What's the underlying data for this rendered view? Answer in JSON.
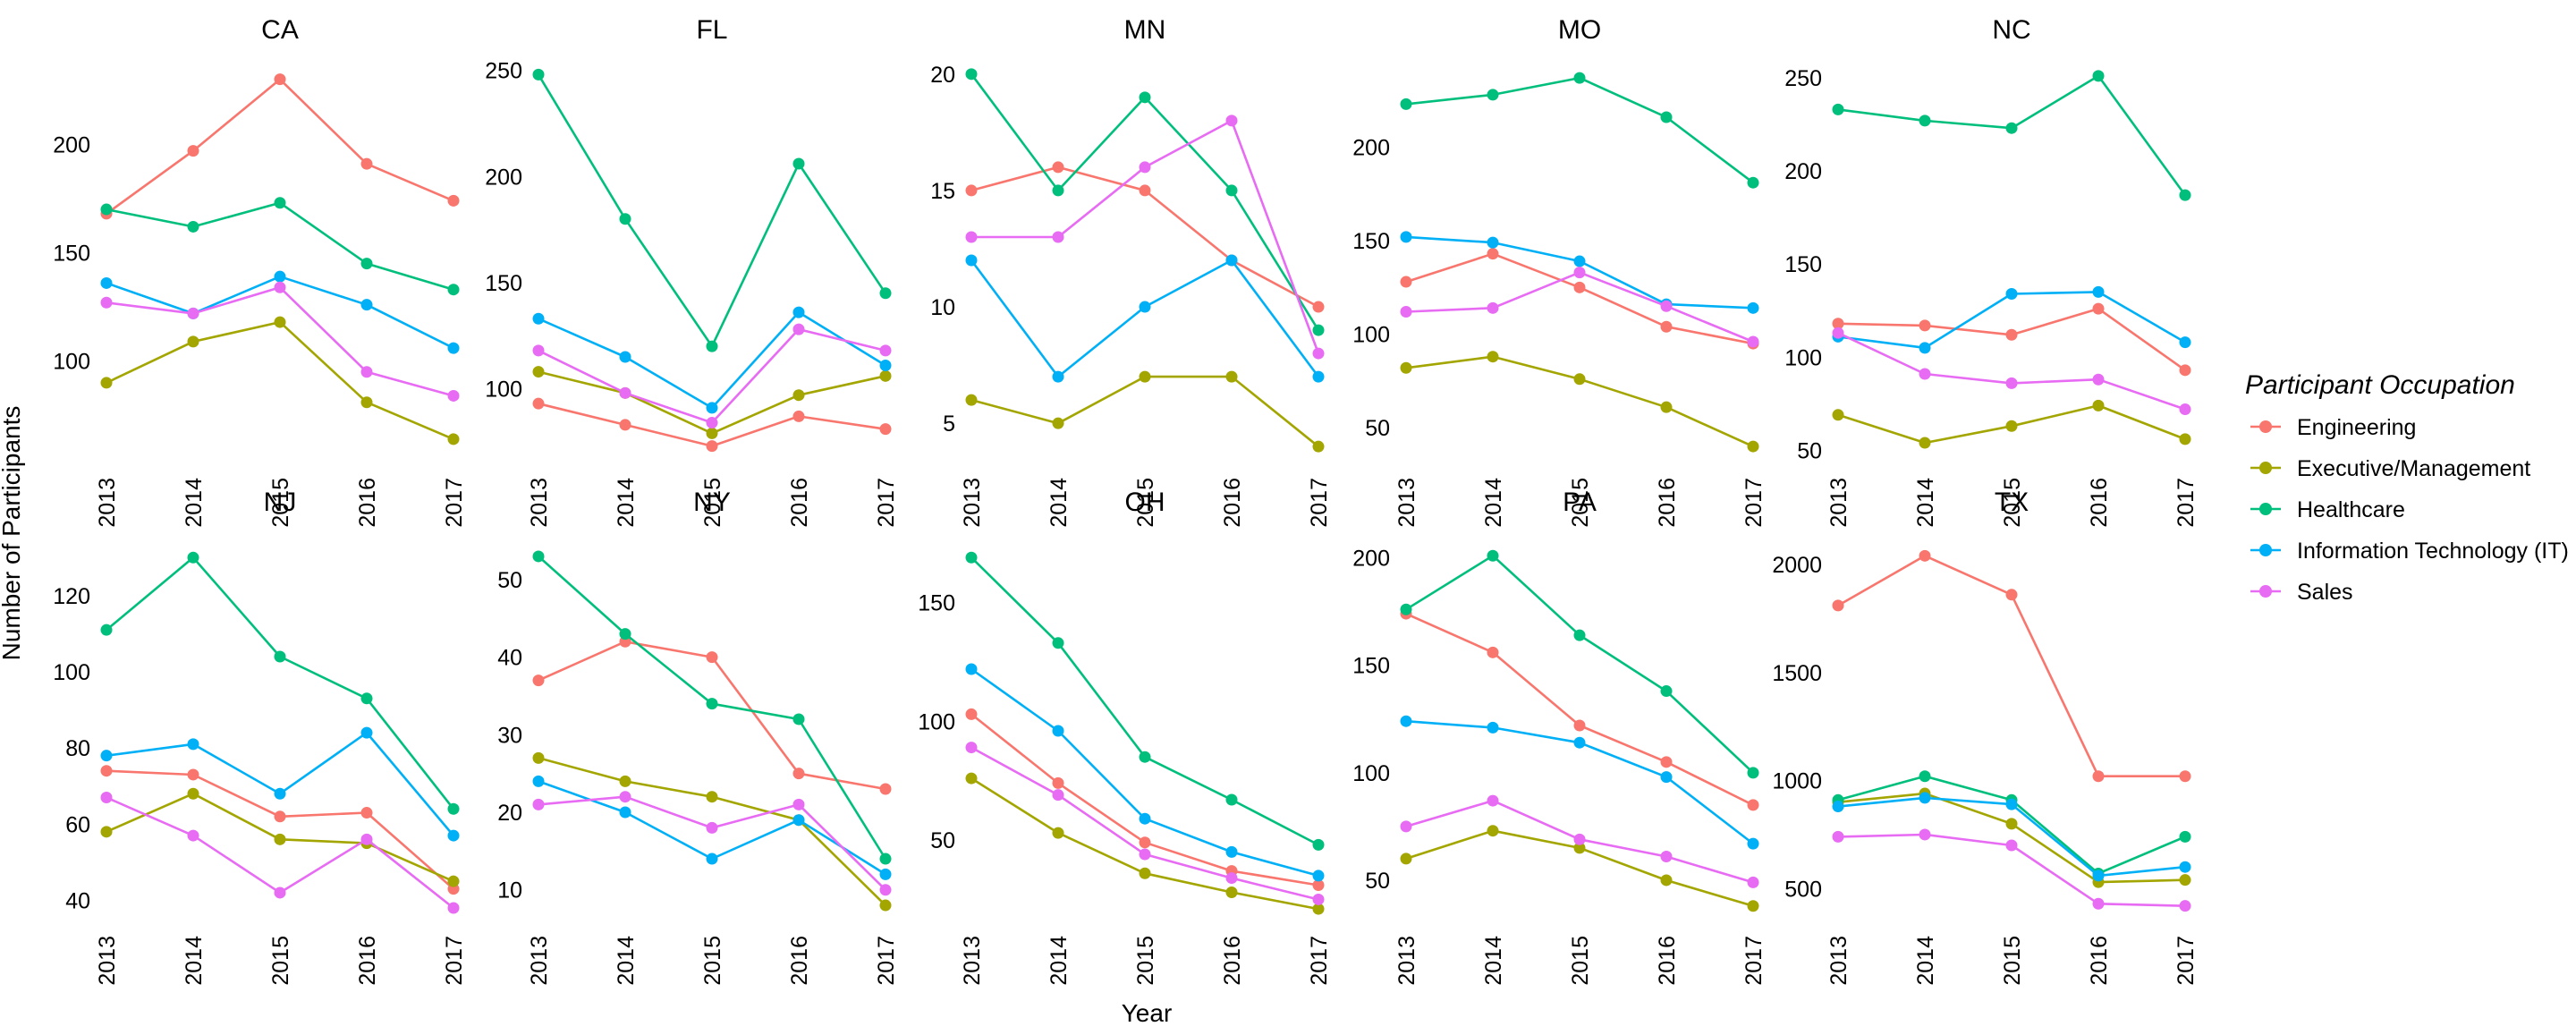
{
  "chart_data": {
    "type": "line",
    "facet": "small-multiples",
    "xlabel": "Year",
    "ylabel": "Number of Participants",
    "legend_title": "Participant Occupation",
    "legend_position": "right",
    "grid": false,
    "x": [
      "2013",
      "2014",
      "2015",
      "2016",
      "2017"
    ],
    "series_names": [
      "Engineering",
      "Executive/Management",
      "Healthcare",
      "Information Technology (IT)",
      "Sales"
    ],
    "series_colors": [
      "#F8766D",
      "#A3A500",
      "#00BF7D",
      "#00B0F6",
      "#E76BF3"
    ],
    "panels": [
      {
        "title": "CA",
        "ylim": [
          52,
          241
        ],
        "yticks": [
          100,
          150,
          200
        ],
        "series": [
          {
            "name": "Engineering",
            "values": [
              168,
              197,
              230,
              191,
              174
            ]
          },
          {
            "name": "Executive/Management",
            "values": [
              90,
              109,
              118,
              81,
              64
            ]
          },
          {
            "name": "Healthcare",
            "values": [
              170,
              162,
              173,
              145,
              133
            ]
          },
          {
            "name": "Information Technology (IT)",
            "values": [
              136,
              122,
              139,
              126,
              106
            ]
          },
          {
            "name": "Sales",
            "values": [
              127,
              122,
              134,
              95,
              84
            ]
          }
        ]
      },
      {
        "title": "FL",
        "ylim": [
          64,
          257
        ],
        "yticks": [
          100,
          150,
          200,
          250
        ],
        "series": [
          {
            "name": "Engineering",
            "values": [
              93,
              83,
              73,
              87,
              81
            ]
          },
          {
            "name": "Executive/Management",
            "values": [
              108,
              98,
              79,
              97,
              106
            ]
          },
          {
            "name": "Healthcare",
            "values": [
              248,
              180,
              120,
              206,
              145
            ]
          },
          {
            "name": "Information Technology (IT)",
            "values": [
              133,
              115,
              91,
              136,
              111
            ]
          },
          {
            "name": "Sales",
            "values": [
              118,
              98,
              84,
              128,
              118
            ]
          }
        ]
      },
      {
        "title": "MN",
        "ylim": [
          3.2,
          20.8
        ],
        "yticks": [
          5,
          10,
          15,
          20
        ],
        "series": [
          {
            "name": "Engineering",
            "values": [
              15,
              16,
              15,
              12,
              10
            ]
          },
          {
            "name": "Executive/Management",
            "values": [
              6,
              5,
              7,
              7,
              4
            ]
          },
          {
            "name": "Healthcare",
            "values": [
              20,
              15,
              19,
              15,
              9
            ]
          },
          {
            "name": "Information Technology (IT)",
            "values": [
              12,
              7,
              10,
              12,
              7
            ]
          },
          {
            "name": "Sales",
            "values": [
              13,
              13,
              16,
              18,
              8
            ]
          }
        ]
      },
      {
        "title": "MO",
        "ylim": [
          30,
          249
        ],
        "yticks": [
          50,
          100,
          150,
          200
        ],
        "series": [
          {
            "name": "Engineering",
            "values": [
              128,
              143,
              125,
              104,
              95
            ]
          },
          {
            "name": "Executive/Management",
            "values": [
              82,
              88,
              76,
              61,
              40
            ]
          },
          {
            "name": "Healthcare",
            "values": [
              223,
              228,
              237,
              216,
              181
            ]
          },
          {
            "name": "Information Technology (IT)",
            "values": [
              152,
              149,
              139,
              116,
              114
            ]
          },
          {
            "name": "Sales",
            "values": [
              112,
              114,
              133,
              115,
              96
            ]
          }
        ]
      },
      {
        "title": "NC",
        "ylim": [
          42,
          262
        ],
        "yticks": [
          50,
          100,
          150,
          200,
          250
        ],
        "series": [
          {
            "name": "Engineering",
            "values": [
              118,
              117,
              112,
              126,
              93
            ]
          },
          {
            "name": "Executive/Management",
            "values": [
              69,
              54,
              63,
              74,
              56
            ]
          },
          {
            "name": "Healthcare",
            "values": [
              233,
              227,
              223,
              251,
              187
            ]
          },
          {
            "name": "Information Technology (IT)",
            "values": [
              111,
              105,
              134,
              135,
              108
            ]
          },
          {
            "name": "Sales",
            "values": [
              113,
              91,
              86,
              88,
              72
            ]
          }
        ]
      },
      {
        "title": "NJ",
        "ylim": [
          34,
          135
        ],
        "yticks": [
          40,
          60,
          80,
          100,
          120
        ],
        "series": [
          {
            "name": "Engineering",
            "values": [
              74,
              73,
              62,
              63,
              43
            ]
          },
          {
            "name": "Executive/Management",
            "values": [
              58,
              68,
              56,
              55,
              45
            ]
          },
          {
            "name": "Healthcare",
            "values": [
              111,
              130,
              104,
              93,
              64
            ]
          },
          {
            "name": "Information Technology (IT)",
            "values": [
              78,
              81,
              68,
              84,
              57
            ]
          },
          {
            "name": "Sales",
            "values": [
              67,
              57,
              42,
              56,
              38
            ]
          }
        ]
      },
      {
        "title": "NY",
        "ylim": [
          5.7,
          55.3
        ],
        "yticks": [
          10,
          20,
          30,
          40,
          50
        ],
        "series": [
          {
            "name": "Engineering",
            "values": [
              37,
              42,
              40,
              25,
              23
            ]
          },
          {
            "name": "Executive/Management",
            "values": [
              27,
              24,
              22,
              19,
              8
            ]
          },
          {
            "name": "Healthcare",
            "values": [
              53,
              43,
              34,
              32,
              14
            ]
          },
          {
            "name": "Information Technology (IT)",
            "values": [
              24,
              20,
              14,
              19,
              12
            ]
          },
          {
            "name": "Sales",
            "values": [
              21,
              22,
              18,
              21,
              10
            ]
          }
        ]
      },
      {
        "title": "OH",
        "ylim": [
          15,
          177
        ],
        "yticks": [
          50,
          100,
          150
        ],
        "series": [
          {
            "name": "Engineering",
            "values": [
              103,
              74,
              49,
              37,
              31
            ]
          },
          {
            "name": "Executive/Management",
            "values": [
              76,
              53,
              36,
              28,
              21
            ]
          },
          {
            "name": "Healthcare",
            "values": [
              169,
              133,
              85,
              67,
              48
            ]
          },
          {
            "name": "Information Technology (IT)",
            "values": [
              122,
              96,
              59,
              45,
              35
            ]
          },
          {
            "name": "Sales",
            "values": [
              89,
              69,
              44,
              34,
              25
            ]
          }
        ]
      },
      {
        "title": "PA",
        "ylim": [
          30,
          209
        ],
        "yticks": [
          50,
          100,
          150,
          200
        ],
        "series": [
          {
            "name": "Engineering",
            "values": [
              174,
              156,
              122,
              105,
              85
            ]
          },
          {
            "name": "Executive/Management",
            "values": [
              60,
              73,
              65,
              50,
              38
            ]
          },
          {
            "name": "Healthcare",
            "values": [
              176,
              201,
              164,
              138,
              100
            ]
          },
          {
            "name": "Information Technology (IT)",
            "values": [
              124,
              121,
              114,
              98,
              67
            ]
          },
          {
            "name": "Sales",
            "values": [
              75,
              87,
              69,
              61,
              49
            ]
          }
        ]
      },
      {
        "title": "TX",
        "ylim": [
          340,
          2120
        ],
        "yticks": [
          500,
          1000,
          1500,
          2000
        ],
        "series": [
          {
            "name": "Engineering",
            "values": [
              1810,
              2040,
              1860,
              1020,
              1020
            ]
          },
          {
            "name": "Executive/Management",
            "values": [
              900,
              940,
              800,
              530,
              540
            ]
          },
          {
            "name": "Healthcare",
            "values": [
              910,
              1020,
              910,
              570,
              740
            ]
          },
          {
            "name": "Information Technology (IT)",
            "values": [
              880,
              920,
              890,
              560,
              600
            ]
          },
          {
            "name": "Sales",
            "values": [
              740,
              750,
              700,
              430,
              420
            ]
          }
        ]
      }
    ]
  }
}
